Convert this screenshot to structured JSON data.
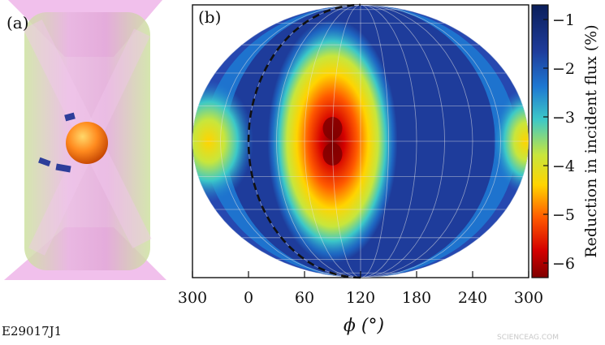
{
  "figure": {
    "panel_a_label": "(a)",
    "panel_b_label": "(b)",
    "figure_id": "E29017J1",
    "watermark": "SCIENCEAG.COM"
  },
  "chart_data": {
    "type": "heatmap",
    "projection": "sinusoidal",
    "xlabel": "ϕ (°)",
    "x_ticks": [
      "300",
      "0",
      "60",
      "120",
      "180",
      "240",
      "300"
    ],
    "colorbar": {
      "label": "Reduction in incident flux (%)",
      "range": [
        -6.3,
        -0.7
      ],
      "ticks": [
        -1,
        -2,
        -3,
        -4,
        -5,
        -6
      ],
      "tick_labels": [
        "−1",
        "−2",
        "−3",
        "−4",
        "−5",
        "−6"
      ]
    },
    "features": [
      {
        "name": "central minimum (two lobes)",
        "phi": 90,
        "value": -6.0
      },
      {
        "name": "left-edge shadow",
        "phi": 280,
        "value": -4.0
      }
    ],
    "background_value": -1.5,
    "dashed_curve": "meridian through ϕ≈0 at equator, meeting poles at ϕ=120",
    "grid": true
  },
  "colors": {
    "scale": [
      "#7f0000",
      "#d40000",
      "#ff5a00",
      "#ffd400",
      "#c8e63c",
      "#3cc8c8",
      "#1e78d2",
      "#1e3c9b",
      "#0a1e5a"
    ]
  }
}
